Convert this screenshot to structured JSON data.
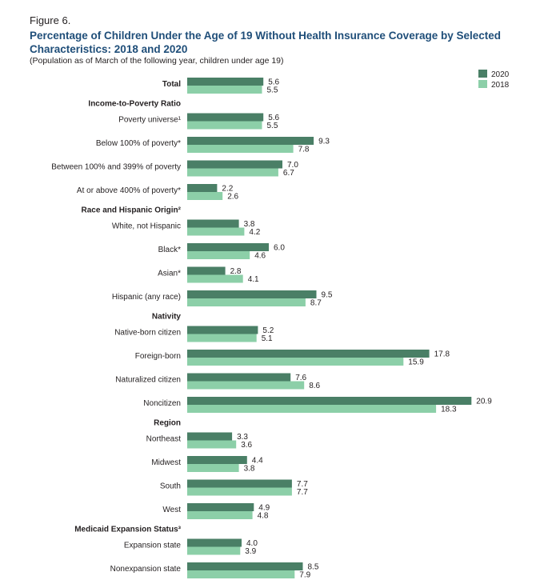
{
  "figure_label": "Figure 6.",
  "title": "Percentage of Children Under the Age of 19 Without Health Insurance Coverage by Selected Characteristics: 2018 and 2020",
  "subtitle": "(Population as of March of the following year, children under age 19)",
  "colors": {
    "series_2020": "#4a7f66",
    "series_2018": "#8ccfa8"
  },
  "chart_data": {
    "type": "bar",
    "orientation": "horizontal",
    "xlim": [
      0,
      21
    ],
    "grid": false,
    "legend": "top-right",
    "series": [
      {
        "name": "2020",
        "key": "y2020"
      },
      {
        "name": "2018",
        "key": "y2018"
      }
    ],
    "rows": [
      {
        "kind": "cat",
        "label": "Total",
        "bold": true,
        "y2020": 5.6,
        "y2018": 5.5
      },
      {
        "kind": "group",
        "label": "Income-to-Poverty Ratio"
      },
      {
        "kind": "cat",
        "label": "Poverty universe¹",
        "y2020": 5.6,
        "y2018": 5.5
      },
      {
        "kind": "cat",
        "label": "Below 100% of poverty*",
        "y2020": 9.3,
        "y2018": 7.8
      },
      {
        "kind": "cat",
        "label": "Between 100% and 399% of poverty",
        "y2020": 7.0,
        "y2018": 6.7
      },
      {
        "kind": "cat",
        "label": "At or above 400% of poverty*",
        "y2020": 2.2,
        "y2018": 2.6
      },
      {
        "kind": "group",
        "label": "Race and Hispanic Origin²"
      },
      {
        "kind": "cat",
        "label": "White, not Hispanic",
        "y2020": 3.8,
        "y2018": 4.2
      },
      {
        "kind": "cat",
        "label": "Black*",
        "y2020": 6.0,
        "y2018": 4.6
      },
      {
        "kind": "cat",
        "label": "Asian*",
        "y2020": 2.8,
        "y2018": 4.1
      },
      {
        "kind": "cat",
        "label": "Hispanic (any race)",
        "y2020": 9.5,
        "y2018": 8.7
      },
      {
        "kind": "group",
        "label": "Nativity"
      },
      {
        "kind": "cat",
        "label": "Native-born citizen",
        "y2020": 5.2,
        "y2018": 5.1
      },
      {
        "kind": "cat",
        "label": "Foreign-born",
        "y2020": 17.8,
        "y2018": 15.9
      },
      {
        "kind": "cat",
        "label": "Naturalized citizen",
        "y2020": 7.6,
        "y2018": 8.6
      },
      {
        "kind": "cat",
        "label": "Noncitizen",
        "y2020": 20.9,
        "y2018": 18.3
      },
      {
        "kind": "group",
        "label": "Region"
      },
      {
        "kind": "cat",
        "label": "Northeast",
        "y2020": 3.3,
        "y2018": 3.6
      },
      {
        "kind": "cat",
        "label": "Midwest",
        "y2020": 4.4,
        "y2018": 3.8
      },
      {
        "kind": "cat",
        "label": "South",
        "y2020": 7.7,
        "y2018": 7.7
      },
      {
        "kind": "cat",
        "label": "West",
        "y2020": 4.9,
        "y2018": 4.8
      },
      {
        "kind": "group",
        "label": "Medicaid Expansion Status³"
      },
      {
        "kind": "cat",
        "label": "Expansion state",
        "y2020": 4.0,
        "y2018": 3.9
      },
      {
        "kind": "cat",
        "label": "Nonexpansion state",
        "y2020": 8.5,
        "y2018": 7.9
      }
    ]
  }
}
